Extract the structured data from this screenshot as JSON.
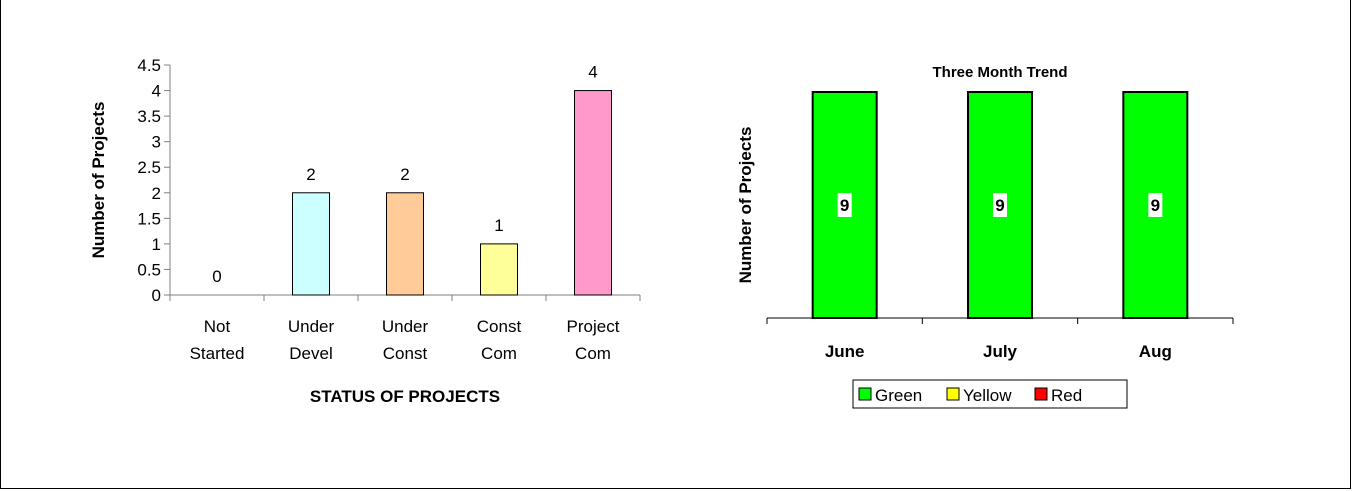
{
  "chart_data": [
    {
      "type": "bar",
      "title": "",
      "xlabel": "STATUS OF PROJECTS",
      "ylabel": "Number of Projects",
      "categories": [
        [
          "Not",
          "Started"
        ],
        [
          "Under",
          "Devel"
        ],
        [
          "Under",
          "Const"
        ],
        [
          "Const",
          "Com"
        ],
        [
          "Project",
          "Com"
        ]
      ],
      "values": [
        0,
        2,
        2,
        1,
        4
      ],
      "colors": [
        "#ccffff",
        "#ccffff",
        "#ffcc99",
        "#ffff99",
        "#ff99cc"
      ],
      "ylim": [
        0,
        4.5
      ],
      "yticks": [
        "0",
        "0.5",
        "1",
        "1.5",
        "2",
        "2.5",
        "3",
        "3.5",
        "4",
        "4.5"
      ],
      "grid": false,
      "legend": "none"
    },
    {
      "type": "bar",
      "stacked": true,
      "title": "Three Month Trend",
      "xlabel": "",
      "ylabel": "Number of Projects",
      "categories": [
        "June",
        "July",
        "Aug"
      ],
      "series": [
        {
          "name": "Green",
          "color": "#00ff00",
          "values": [
            9,
            9,
            9
          ]
        },
        {
          "name": "Yellow",
          "color": "#ffff00",
          "values": [
            0,
            0,
            0
          ]
        },
        {
          "name": "Red",
          "color": "#ff0000",
          "values": [
            0,
            0,
            0
          ]
        }
      ],
      "data_labels": [
        "9",
        "9",
        "9"
      ],
      "grid": false,
      "legend": "bottom"
    }
  ]
}
